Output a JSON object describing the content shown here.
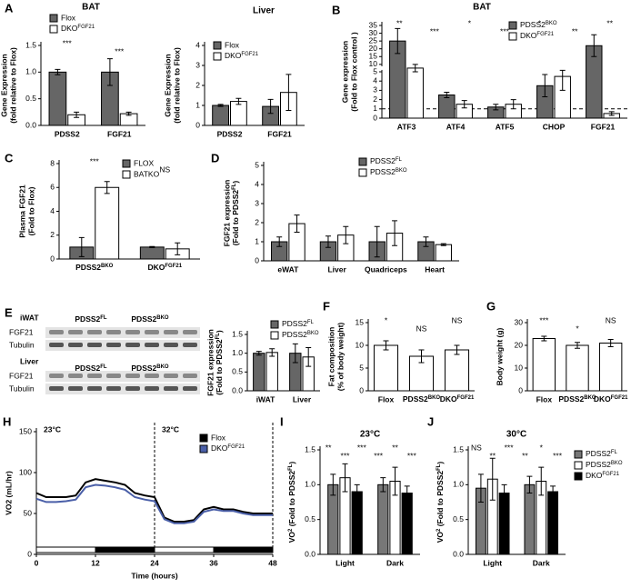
{
  "chart_data": [
    {
      "type": "bar",
      "panel": "A",
      "title": "BAT",
      "ylabel": [
        "Gene Expression",
        "(fold relative to Flox)"
      ],
      "categories": [
        "PDSS2",
        "FGF21"
      ],
      "series": [
        {
          "name": "Flox",
          "color": "#666666",
          "values": [
            1.0,
            1.0
          ],
          "errors": [
            0.05,
            0.25
          ]
        },
        {
          "name": [
            "DKO",
            "FGF21"
          ],
          "color": "#ffffff",
          "values": [
            0.2,
            0.22
          ],
          "errors": [
            0.05,
            0.03
          ]
        }
      ],
      "ylim": [
        0,
        1.5
      ],
      "yticks": [
        {
          "value": 0,
          "label": "0.0"
        },
        {
          "value": 0.5,
          "label": "0.5"
        },
        {
          "value": 1,
          "label": "1.0"
        },
        {
          "value": 1.5,
          "label": "1.5"
        }
      ],
      "annotations": [
        "***",
        "***"
      ],
      "legend": true
    },
    {
      "type": "bar",
      "title": "Liver",
      "ylabel": [
        "Gene Expression",
        "(fold relative to Flox)"
      ],
      "categories": [
        "PDSS2",
        "FGF21"
      ],
      "series": [
        {
          "name": "Flox",
          "color": "#666666",
          "values": [
            1.0,
            0.95
          ],
          "errors": [
            0.05,
            0.35
          ]
        },
        {
          "name": [
            "DKO",
            "FGF21"
          ],
          "color": "#ffffff",
          "values": [
            1.2,
            1.65
          ],
          "errors": [
            0.15,
            0.9
          ]
        }
      ],
      "ylim": [
        0,
        4
      ],
      "yticks": [
        0,
        1,
        2,
        3,
        4
      ],
      "annotations": [],
      "legend": true
    },
    {
      "type": "bar",
      "panel": "B",
      "title": "BAT",
      "ylabel": [
        "Gene expression",
        "(Fold to Flox control )"
      ],
      "categories": [
        "ATF3",
        "ATF4",
        "ATF5",
        "CHOP",
        "FGF21"
      ],
      "series": [
        {
          "name": [
            "PDSS2",
            "BKO"
          ],
          "color": "#666666",
          "values": [
            25,
            2.5,
            1.2,
            3.5,
            22
          ],
          "errors": [
            8,
            0.3,
            0.3,
            1.2,
            7
          ]
        },
        {
          "name": [
            "DKO",
            "FGF21"
          ],
          "color": "#ffffff",
          "values": [
            7.5,
            1.5,
            1.5,
            4.5,
            0.5
          ],
          "errors": [
            2.5,
            0.4,
            0.5,
            1.5,
            0.2
          ]
        }
      ],
      "ylim": [
        0,
        35
      ],
      "ybreak": [
        5,
        10
      ],
      "refline": 1,
      "yticks": [
        0,
        1,
        2,
        3,
        4,
        5,
        10,
        15,
        20,
        25,
        30,
        35
      ],
      "annotations": [
        "**",
        "***",
        "*",
        "***",
        "*",
        "**",
        "**"
      ],
      "legend": true
    },
    {
      "type": "bar",
      "panel": "C",
      "ylabel": [
        "Plasma FGF21",
        "(Fold to Flox)"
      ],
      "categories": [
        [
          "PDSS2",
          "BKO"
        ],
        [
          "DKO",
          "FGF21"
        ]
      ],
      "series": [
        {
          "name": "FLOX",
          "color": "#666666",
          "values": [
            1.0,
            1.0
          ],
          "errors": [
            0.8,
            0.05
          ]
        },
        {
          "name": "BATKO",
          "color": "#ffffff",
          "values": [
            6.0,
            0.85
          ],
          "errors": [
            0.5,
            0.5
          ]
        }
      ],
      "ylim": [
        0,
        8
      ],
      "yticks": [
        0,
        2,
        4,
        6,
        8
      ],
      "annotations": [
        "***",
        "NS"
      ],
      "legend": true
    },
    {
      "type": "bar",
      "panel": "D",
      "ylabel": [
        "FGF21 expression",
        [
          "(Fold to PDSS2",
          "FL",
          ")"
        ]
      ],
      "categories": [
        "eWAT",
        "Liver",
        "Quadriceps",
        "Heart"
      ],
      "series": [
        {
          "name": [
            "PDSS2",
            "FL"
          ],
          "color": "#666666",
          "values": [
            1.0,
            1.0,
            1.0,
            1.0
          ],
          "errors": [
            0.25,
            0.3,
            0.8,
            0.25
          ]
        },
        {
          "name": [
            "PDSS2",
            "BKO"
          ],
          "color": "#ffffff",
          "values": [
            1.95,
            1.35,
            1.45,
            0.85
          ],
          "errors": [
            0.45,
            0.45,
            0.65,
            0.05
          ]
        }
      ],
      "ylim": [
        0,
        5
      ],
      "yticks": [
        0,
        1,
        2,
        3,
        4,
        5
      ],
      "annotations": [],
      "legend": true
    },
    {
      "type": "bar",
      "ylabel": [
        "FGF21 expression",
        [
          "(Fold to PDSS2",
          "FL",
          ")"
        ]
      ],
      "categories": [
        "iWAT",
        "Liver"
      ],
      "series": [
        {
          "name": [
            "PDSS2",
            "FL"
          ],
          "color": "#666666",
          "values": [
            1.0,
            1.0
          ],
          "errors": [
            0.05,
            0.25
          ]
        },
        {
          "name": [
            "PDSS2",
            "BKO"
          ],
          "color": "#ffffff",
          "values": [
            1.02,
            0.9
          ],
          "errors": [
            0.1,
            0.25
          ]
        }
      ],
      "ylim": [
        0,
        1.5
      ],
      "yticks": [
        {
          "value": 0,
          "label": "0.0"
        },
        {
          "value": 0.5,
          "label": "0.5"
        },
        {
          "value": 1,
          "label": "1.0"
        },
        {
          "value": 1.5,
          "label": "1.5"
        }
      ],
      "annotations": [],
      "legend": true
    },
    {
      "type": "bar",
      "panel": "F",
      "ylabel": [
        "Fat composition",
        "(% of body weight)"
      ],
      "categories": [
        "Flox",
        [
          "PDSS2",
          "BKO"
        ],
        [
          "DKO",
          "FGF21"
        ]
      ],
      "series": [
        {
          "color": "#ffffff",
          "values": [
            10,
            7.6,
            9
          ],
          "errors": [
            1,
            1.4,
            1
          ]
        }
      ],
      "ylim": [
        0,
        15
      ],
      "yticks": [
        0,
        5,
        10,
        15
      ],
      "annotations": [
        "*",
        "NS",
        "NS"
      ],
      "legend": false
    },
    {
      "type": "bar",
      "panel": "G",
      "ylabel": [
        "Body weight (g)"
      ],
      "categories": [
        "Flox",
        [
          "PDSS2",
          "BKO"
        ],
        [
          "DKO",
          "FGF21"
        ]
      ],
      "series": [
        {
          "color": "#ffffff",
          "values": [
            23,
            20,
            21
          ],
          "errors": [
            1,
            1.3,
            1.6
          ]
        }
      ],
      "ylim": [
        0,
        30
      ],
      "yticks": [
        0,
        10,
        20,
        30
      ],
      "annotations": [
        "***",
        "*",
        "NS"
      ],
      "legend": false
    },
    {
      "type": "line",
      "panel": "H",
      "ylabel": [
        "VO2 (mL/hr)"
      ],
      "xlabel": "Time (hours)",
      "x": [
        0,
        2,
        4,
        6,
        8,
        10,
        12,
        14,
        16,
        18,
        20,
        22,
        24,
        26,
        28,
        30,
        32,
        34,
        36,
        38,
        40,
        42,
        44,
        46,
        48
      ],
      "series": [
        {
          "name": "Flox",
          "color": "#000000",
          "values": [
            75,
            70,
            70,
            70,
            72,
            88,
            92,
            90,
            88,
            85,
            75,
            72,
            70,
            45,
            40,
            40,
            42,
            55,
            58,
            55,
            55,
            52,
            50,
            50,
            50
          ]
        },
        {
          "name": [
            "DKO",
            "FGF21"
          ],
          "color": "#4a5fa8",
          "values": [
            68,
            64,
            64,
            65,
            67,
            82,
            85,
            84,
            82,
            79,
            70,
            67,
            65,
            43,
            38,
            38,
            40,
            52,
            55,
            53,
            53,
            50,
            48,
            48,
            48
          ]
        }
      ],
      "xlim": [
        0,
        48
      ],
      "xticks": [
        0,
        12,
        24,
        36,
        48
      ],
      "ylim": [
        0,
        150
      ],
      "yticks": [
        0,
        50,
        100,
        150
      ],
      "annotations": [
        "23°C",
        "32°C"
      ],
      "legend": true
    },
    {
      "type": "bar",
      "panel": "I",
      "title": "23°C",
      "ylabel": [
        [
          "VO",
          "2",
          " (Fold to PDSS2",
          "FL",
          ")"
        ]
      ],
      "categories": [
        "Light",
        "Dark"
      ],
      "series": [
        {
          "name": [
            "PDSS2",
            "FL"
          ],
          "color": "#777777",
          "values": [
            1.0,
            1.0
          ],
          "errors": [
            0.15,
            0.1
          ]
        },
        {
          "name": [
            "PDSS2",
            "BKO"
          ],
          "color": "#ffffff",
          "values": [
            1.1,
            1.05
          ],
          "errors": [
            0.2,
            0.2
          ]
        },
        {
          "name": [
            "DKO",
            "FGF21"
          ],
          "color": "#000000",
          "values": [
            0.9,
            0.88
          ],
          "errors": [
            0.1,
            0.1
          ]
        }
      ],
      "ylim": [
        0,
        1.5
      ],
      "yticks": [
        {
          "value": 0,
          "label": "0.0"
        },
        {
          "value": 0.5,
          "label": "0.5"
        },
        {
          "value": 1,
          "label": "1.0"
        },
        {
          "value": 1.5,
          "label": "1.5"
        }
      ],
      "annotations": [
        "**",
        "***",
        "***",
        "***",
        "**",
        "***"
      ],
      "legend": false
    },
    {
      "type": "bar",
      "panel": "J",
      "title": "30°C",
      "ylabel": [
        [
          "VO",
          "2",
          " (Fold to PDSS2",
          "FL",
          ")"
        ]
      ],
      "categories": [
        "Light",
        "Dark"
      ],
      "series": [
        {
          "name": [
            "PDSS2",
            "FL"
          ],
          "color": "#777777",
          "values": [
            0.95,
            1.0
          ],
          "errors": [
            0.2,
            0.12
          ]
        },
        {
          "name": [
            "PDSS2",
            "BKO"
          ],
          "color": "#ffffff",
          "values": [
            1.08,
            1.05
          ],
          "errors": [
            0.3,
            0.2
          ]
        },
        {
          "name": [
            "DKO",
            "FGF21"
          ],
          "color": "#000000",
          "values": [
            0.88,
            0.9
          ],
          "errors": [
            0.12,
            0.08
          ]
        }
      ],
      "ylim": [
        0,
        1.5
      ],
      "yticks": [
        {
          "value": 0,
          "label": "0.0"
        },
        {
          "value": 0.5,
          "label": "0.5"
        },
        {
          "value": 1,
          "label": "1.0"
        },
        {
          "value": 1.5,
          "label": "1.5"
        }
      ],
      "annotations": [
        "NS",
        "**",
        "***",
        "**",
        "*",
        "***"
      ],
      "legend": true
    }
  ],
  "blot": {
    "panel": "E",
    "tissues": [
      {
        "name": "iWAT",
        "groups": [
          [
            "PDSS2",
            "FL"
          ],
          [
            "PDSS2",
            "BKO"
          ]
        ],
        "rows": [
          "FGF21",
          "Tubulin"
        ]
      },
      {
        "name": "Liver",
        "groups": [
          [
            "PDSS2",
            "FL"
          ],
          [
            "PDSS2",
            "BKO"
          ]
        ],
        "rows": [
          "FGF21",
          "Tubulin"
        ]
      }
    ]
  }
}
